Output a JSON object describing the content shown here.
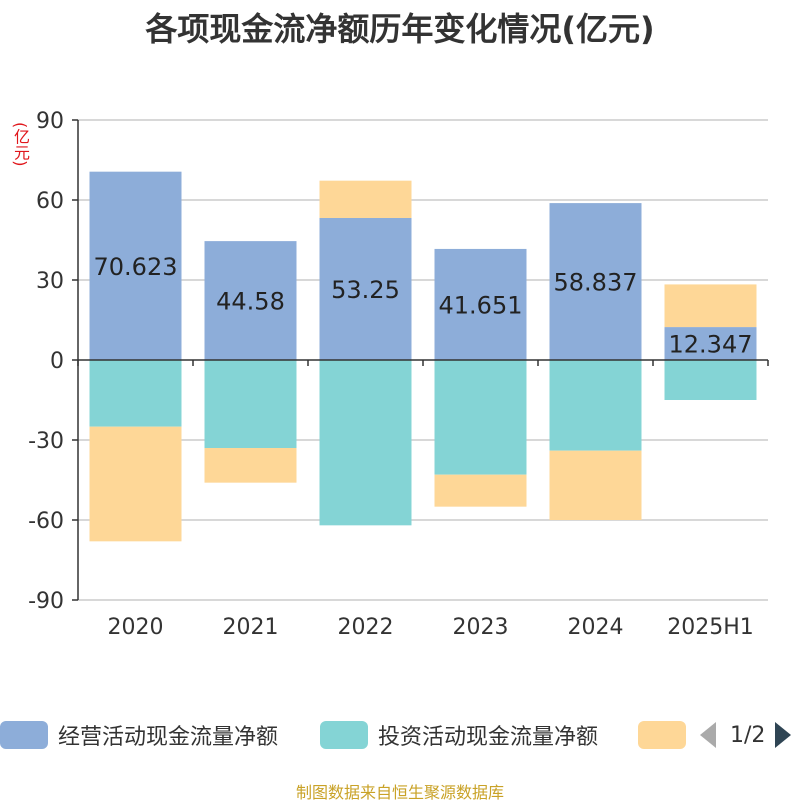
{
  "title": "各项现金流净额历年变化情况(亿元)",
  "unit_label": "(亿元)",
  "footer": "制图数据来自恒生聚源数据库",
  "legend": {
    "items": [
      {
        "label": "经营活动现金流量净额",
        "color": "#8dadd9"
      },
      {
        "label": "投资活动现金流量净额",
        "color": "#84d4d5"
      },
      {
        "label": "",
        "color": "#fed797"
      }
    ],
    "page": "1/2"
  },
  "chart_data": {
    "type": "bar",
    "stacked": true,
    "categories": [
      "2020",
      "2021",
      "2022",
      "2023",
      "2024",
      "2025H1"
    ],
    "ylim": [
      -90,
      90
    ],
    "yticks": [
      90,
      60,
      30,
      0,
      -30,
      -60,
      -90
    ],
    "grid": true,
    "series": [
      {
        "name": "经营活动现金流量净额",
        "color": "#8dadd9",
        "values": [
          70.623,
          44.58,
          53.25,
          41.651,
          58.837,
          12.347
        ],
        "labels": [
          "70.623",
          "44.58",
          "53.25",
          "41.651",
          "58.837",
          "12.347"
        ]
      },
      {
        "name": "投资活动现金流量净额",
        "color": "#84d4d5",
        "values": [
          -25,
          -33,
          -62,
          -43,
          -34,
          -15
        ]
      },
      {
        "name": "",
        "color": "#fed797",
        "values": [
          -43,
          -13,
          14,
          -12,
          -26,
          16
        ]
      }
    ]
  }
}
